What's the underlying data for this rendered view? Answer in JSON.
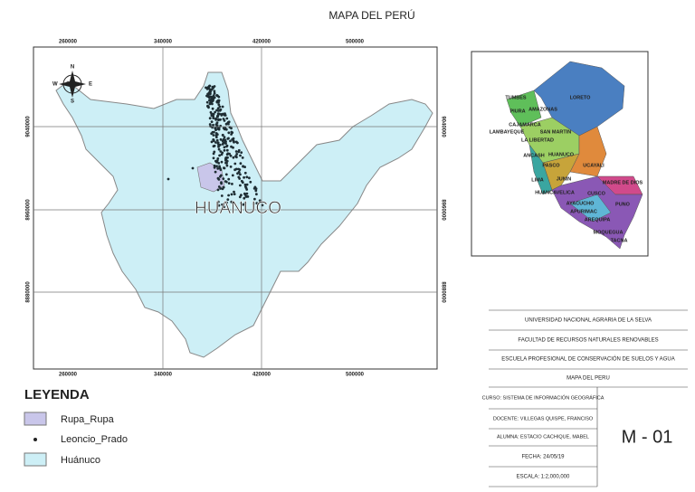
{
  "title": "MAPA DEL PERÚ",
  "main_map": {
    "grid_x": [
      "260000",
      "340000",
      "420000",
      "500000"
    ],
    "grid_y": [
      "9040000",
      "8960000",
      "8880000"
    ],
    "label": "HUANUCO",
    "compass": [
      "N",
      "E",
      "S",
      "W"
    ]
  },
  "inset_map": {
    "labels": [
      "TUMBES",
      "PIURA",
      "AMAZONAS",
      "LORETO",
      "CAJAMARCA",
      "LAMBAYEQUE",
      "SAN MARTIN",
      "LA LIBERTAD",
      "ANCASH",
      "HUANUCO",
      "PASCO",
      "UCAYALI",
      "LIMA",
      "JUNIN",
      "MADRE DE DIOS",
      "HUANCAVELICA",
      "CUSCO",
      "AYACUCHO",
      "PUNO",
      "APURIMAC",
      "AREQUIPA",
      "MOQUEGUA",
      "TACNA"
    ]
  },
  "legend": {
    "title": "LEYENDA",
    "items": [
      "Rupa_Rupa",
      "Leoncio_Prado",
      "Huánuco"
    ]
  },
  "title_block": {
    "rows": [
      "UNIVERSIDAD NACIONAL AGRARIA DE LA SELVA",
      "FACULTAD DE RECURSOS NATURALES RENOVABLES",
      "ESCUELA PROFESIONAL DE CONSERVACIÓN DE SUELOS Y AGUA",
      "MAPA DEL PERU"
    ],
    "details": [
      "CURSO: SISTEMA DE INFORMACIÓN GEOGRÁFICA",
      "DOCENTE: VILLEGAS QUISPE, FRANCISO",
      "ALUMNA: ESTACIO CACHIQUE, MABEL",
      "FECHA: 24/05/19",
      "ESCALA: 1:2,000,000"
    ],
    "code": "M - 01"
  }
}
